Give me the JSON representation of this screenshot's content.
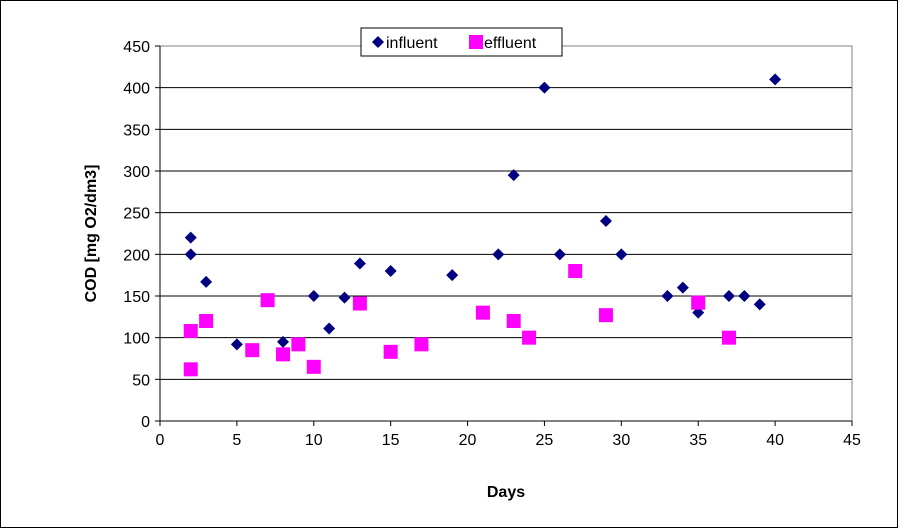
{
  "chart_data": {
    "type": "scatter",
    "xlabel": "Days",
    "ylabel": "COD [mg O2/dm3]",
    "xlim": [
      0,
      45
    ],
    "ylim": [
      0,
      450
    ],
    "xticks": [
      0,
      5,
      10,
      15,
      20,
      25,
      30,
      35,
      40,
      45
    ],
    "yticks": [
      0,
      50,
      100,
      150,
      200,
      250,
      300,
      350,
      400,
      450
    ],
    "grid": "horizontal",
    "legend_position": "top",
    "series": [
      {
        "name": "influent",
        "marker": "diamond",
        "color": "#000080",
        "points": [
          [
            2,
            220
          ],
          [
            2,
            200
          ],
          [
            3,
            167
          ],
          [
            5,
            92
          ],
          [
            8,
            95
          ],
          [
            10,
            150
          ],
          [
            11,
            111
          ],
          [
            12,
            148
          ],
          [
            13,
            189
          ],
          [
            15,
            180
          ],
          [
            17,
            93
          ],
          [
            19,
            175
          ],
          [
            22,
            200
          ],
          [
            23,
            295
          ],
          [
            25,
            400
          ],
          [
            26,
            200
          ],
          [
            29,
            240
          ],
          [
            30,
            200
          ],
          [
            33,
            150
          ],
          [
            34,
            160
          ],
          [
            35,
            130
          ],
          [
            37,
            150
          ],
          [
            38,
            150
          ],
          [
            39,
            140
          ],
          [
            40,
            410
          ]
        ]
      },
      {
        "name": "effluent",
        "marker": "square",
        "color": "#FF00FF",
        "points": [
          [
            2,
            108
          ],
          [
            2,
            62
          ],
          [
            3,
            120
          ],
          [
            6,
            85
          ],
          [
            7,
            145
          ],
          [
            8,
            80
          ],
          [
            9,
            92
          ],
          [
            10,
            65
          ],
          [
            13,
            141
          ],
          [
            15,
            83
          ],
          [
            17,
            92
          ],
          [
            21,
            130
          ],
          [
            23,
            120
          ],
          [
            24,
            100
          ],
          [
            27,
            180
          ],
          [
            29,
            127
          ],
          [
            35,
            142
          ],
          [
            37,
            100
          ]
        ]
      }
    ]
  }
}
